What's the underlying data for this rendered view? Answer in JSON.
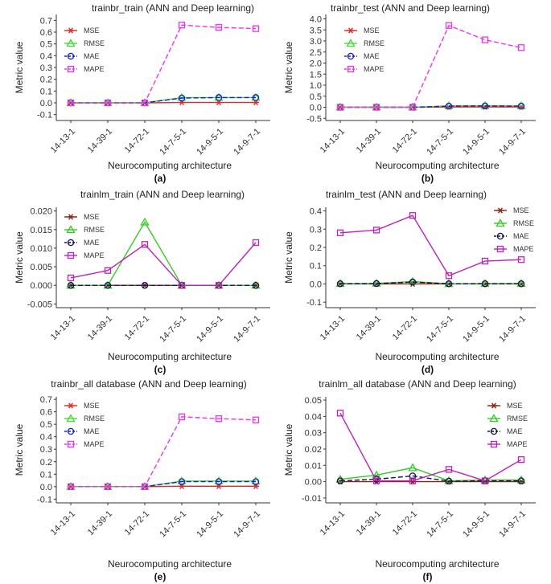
{
  "chart_data": [
    {
      "type": "line",
      "title": "trainbr_train (ANN and Deep learning)",
      "label": "(a)",
      "xlabel": "Neurocomputing architecture",
      "ylabel": "Metric value",
      "categories": [
        "14-13-1",
        "14-39-1",
        "14-72-1",
        "14-7-5-1",
        "14-9-5-1",
        "14-9-7-1"
      ],
      "ylim": [
        -0.15,
        0.75
      ],
      "yticks": [
        -0.1,
        0.0,
        0.1,
        0.2,
        0.3,
        0.4,
        0.5,
        0.6,
        0.7
      ],
      "ytick_labels": [
        "-0.1",
        "0.0",
        "0.1",
        "0.2",
        "0.3",
        "0.4",
        "0.5",
        "0.6",
        "0.7"
      ],
      "series": [
        {
          "name": "MSE",
          "values": [
            0.0,
            0.0,
            0.0,
            0.003,
            0.003,
            0.003
          ]
        },
        {
          "name": "RMSE",
          "values": [
            0.0,
            0.0,
            0.0,
            0.045,
            0.045,
            0.045
          ]
        },
        {
          "name": "MAE",
          "values": [
            0.0,
            0.0,
            0.0,
            0.04,
            0.045,
            0.045
          ]
        },
        {
          "name": "MAPE",
          "values": [
            0.0,
            0.0,
            0.0,
            0.66,
            0.64,
            0.63
          ]
        }
      ]
    },
    {
      "type": "line",
      "title": "trainbr_test (ANN and Deep learning)",
      "label": "(b)",
      "xlabel": "Neurocomputing architecture",
      "ylabel": "Metric value",
      "categories": [
        "14-13-1",
        "14-39-1",
        "14-72-1",
        "14-7-5-1",
        "14-9-5-1",
        "14-9-7-1"
      ],
      "ylim": [
        -0.6,
        4.2
      ],
      "yticks": [
        -0.5,
        0.0,
        0.5,
        1.0,
        1.5,
        2.0,
        2.5,
        3.0,
        3.5,
        4.0
      ],
      "ytick_labels": [
        "-0.5",
        "0.0",
        "0.5",
        "1.0",
        "1.5",
        "2.0",
        "2.5",
        "3.0",
        "3.5",
        "4.0"
      ],
      "series": [
        {
          "name": "MSE",
          "values": [
            0.0,
            0.0,
            0.0,
            0.01,
            0.01,
            0.01
          ]
        },
        {
          "name": "RMSE",
          "values": [
            0.0,
            0.0,
            0.0,
            0.06,
            0.07,
            0.06
          ]
        },
        {
          "name": "MAE",
          "values": [
            0.0,
            0.0,
            0.0,
            0.05,
            0.06,
            0.05
          ]
        },
        {
          "name": "MAPE",
          "values": [
            0.0,
            0.0,
            0.0,
            3.7,
            3.05,
            2.7
          ]
        }
      ]
    },
    {
      "type": "line",
      "title": "trainlm_train (ANN and Deep learning)",
      "label": "(c)",
      "xlabel": "Neurocomputing architecture",
      "ylabel": "Metric value",
      "categories": [
        "14-13-1",
        "14-39-1",
        "14-72-1",
        "14-7-5-1",
        "14-9-5-1",
        "14-9-7-1"
      ],
      "ylim": [
        -0.006,
        0.021
      ],
      "yticks": [
        -0.005,
        0.0,
        0.005,
        0.01,
        0.015,
        0.02
      ],
      "ytick_labels": [
        "-0.005",
        "0.000",
        "0.005",
        "0.010",
        "0.015",
        "0.020"
      ],
      "series": [
        {
          "name": "MSE",
          "values": [
            0.0,
            0.0,
            0.0,
            0.0,
            0.0,
            0.0
          ]
        },
        {
          "name": "RMSE",
          "values": [
            0.0,
            0.0,
            0.017,
            0.0,
            0.0,
            0.0
          ]
        },
        {
          "name": "MAE",
          "values": [
            0.0,
            0.0,
            0.0,
            0.0,
            0.0,
            0.0
          ]
        },
        {
          "name": "MAPE",
          "values": [
            0.002,
            0.004,
            0.011,
            0.0,
            0.0,
            0.0115
          ]
        }
      ]
    },
    {
      "type": "line",
      "title": "trainlm_test (ANN and Deep learning)",
      "label": "(d)",
      "xlabel": "Neurocomputing architecture",
      "ylabel": "Metric value",
      "categories": [
        "14-13-1",
        "14-39-1",
        "14-72-1",
        "14-7-5-1",
        "14-9-5-1",
        "14-9-7-1"
      ],
      "ylim": [
        -0.13,
        0.42
      ],
      "yticks": [
        -0.1,
        0.0,
        0.1,
        0.2,
        0.3,
        0.4
      ],
      "ytick_labels": [
        "-0.1",
        "0.0",
        "0.1",
        "0.2",
        "0.3",
        "0.4"
      ],
      "series": [
        {
          "name": "MSE",
          "values": [
            0.0,
            0.0,
            0.0,
            0.0,
            0.0,
            0.0
          ]
        },
        {
          "name": "RMSE",
          "values": [
            0.002,
            0.003,
            0.013,
            0.001,
            0.002,
            0.002
          ]
        },
        {
          "name": "MAE",
          "values": [
            0.001,
            0.002,
            0.01,
            0.001,
            0.001,
            0.001
          ]
        },
        {
          "name": "MAPE",
          "values": [
            0.28,
            0.295,
            0.375,
            0.045,
            0.125,
            0.133
          ]
        }
      ]
    },
    {
      "type": "line",
      "title": "trainbr_all database (ANN and Deep learning)",
      "label": "(e)",
      "xlabel": "Neurocomputing architecture",
      "ylabel": "Metric value",
      "categories": [
        "14-13-1",
        "14-39-1",
        "14-72-1",
        "14-7-5-1",
        "14-9-5-1",
        "14-9-7-1"
      ],
      "ylim": [
        -0.13,
        0.72
      ],
      "yticks": [
        -0.1,
        0.0,
        0.1,
        0.2,
        0.3,
        0.4,
        0.5,
        0.6,
        0.7
      ],
      "ytick_labels": [
        "-0.1",
        "0.0",
        "0.1",
        "0.2",
        "0.3",
        "0.4",
        "0.5",
        "0.6",
        "0.7"
      ],
      "series": [
        {
          "name": "MSE",
          "values": [
            0.0,
            0.0,
            0.0,
            0.003,
            0.003,
            0.003
          ]
        },
        {
          "name": "RMSE",
          "values": [
            0.0,
            0.0,
            0.0,
            0.045,
            0.045,
            0.045
          ]
        },
        {
          "name": "MAE",
          "values": [
            0.0,
            0.0,
            0.0,
            0.04,
            0.04,
            0.04
          ]
        },
        {
          "name": "MAPE",
          "values": [
            0.0,
            0.0,
            0.0,
            0.56,
            0.545,
            0.535
          ]
        }
      ]
    },
    {
      "type": "line",
      "title": "trainlm_all database (ANN and Deep learning)",
      "label": "(f)",
      "xlabel": "Neurocomputing architecture",
      "ylabel": "Metric value",
      "categories": [
        "14-13-1",
        "14-39-1",
        "14-72-1",
        "14-7-5-1",
        "14-9-5-1",
        "14-9-7-1"
      ],
      "ylim": [
        -0.013,
        0.052
      ],
      "yticks": [
        -0.01,
        0.0,
        0.01,
        0.02,
        0.03,
        0.04,
        0.05
      ],
      "ytick_labels": [
        "-0.01",
        "0.00",
        "0.01",
        "0.02",
        "0.03",
        "0.04",
        "0.05"
      ],
      "series": [
        {
          "name": "MSE",
          "values": [
            0.0,
            0.0,
            0.0,
            0.0,
            0.0,
            0.0
          ]
        },
        {
          "name": "RMSE",
          "values": [
            0.0015,
            0.004,
            0.0085,
            0.0005,
            0.001,
            0.001
          ]
        },
        {
          "name": "MAE",
          "values": [
            0.0005,
            0.0015,
            0.0035,
            0.0003,
            0.0005,
            0.0005
          ]
        },
        {
          "name": "MAPE",
          "values": [
            0.042,
            0.0005,
            0.0005,
            0.0075,
            0.0005,
            0.0135
          ]
        }
      ]
    }
  ],
  "series_styles": {
    "MSE": {
      "color": "#ee2222",
      "marker": "asterisk",
      "dash": false
    },
    "RMSE": {
      "color": "#44dd33",
      "marker": "triangle",
      "dash": false
    },
    "MAE": {
      "color": "#1122cc",
      "marker": "circle",
      "dash": true
    },
    "MAPE": {
      "color": "#ee33ee",
      "marker": "square",
      "dash": true
    }
  },
  "series_styles_alt": {
    "MSE": {
      "color": "#882211",
      "marker": "asterisk",
      "dash": false
    },
    "RMSE": {
      "color": "#33cc22",
      "marker": "triangle",
      "dash": false
    },
    "MAE": {
      "color": "#111155",
      "marker": "circle",
      "dash": true
    },
    "MAPE": {
      "color": "#bb22bb",
      "marker": "square",
      "dash": false
    }
  }
}
